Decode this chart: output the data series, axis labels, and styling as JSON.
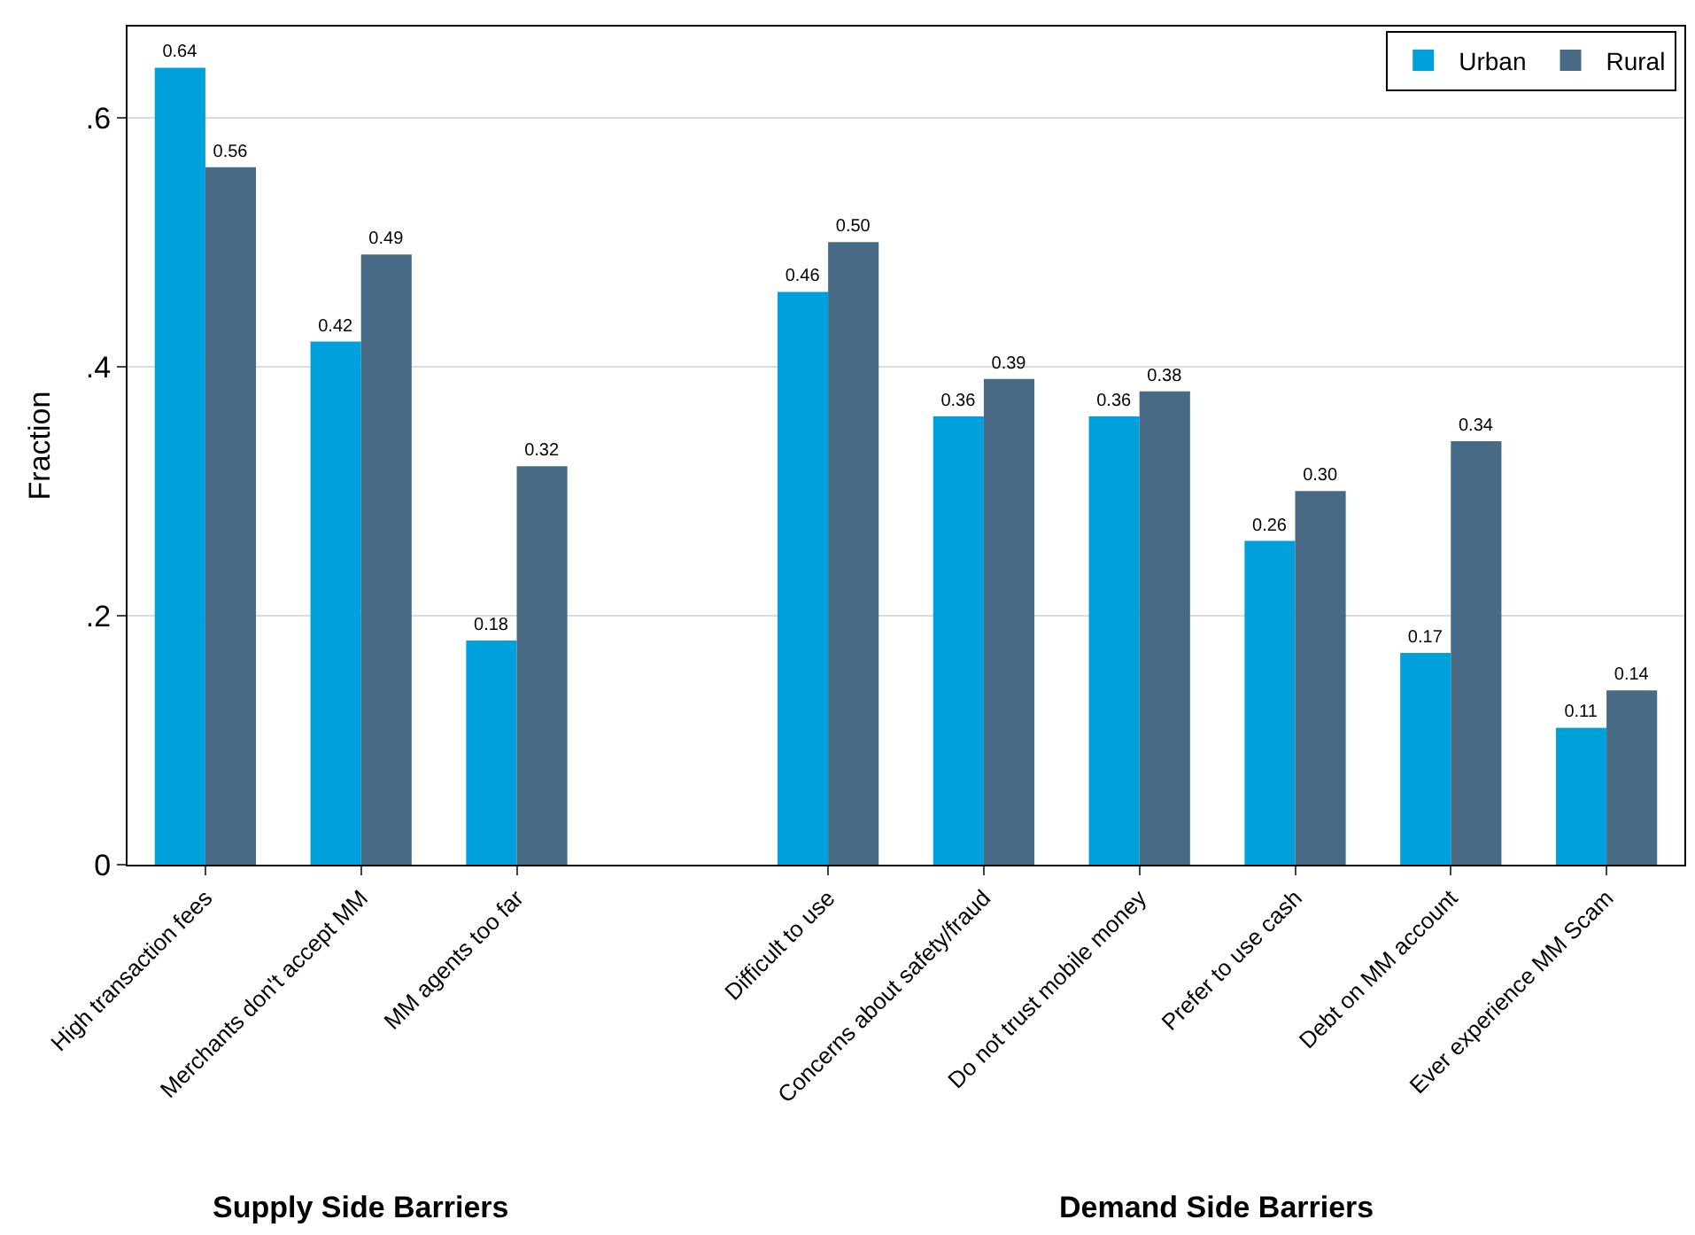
{
  "chart_data": {
    "type": "bar",
    "ylabel": "Fraction",
    "categories": [
      "High transaction fees",
      "Merchants don't accept MM",
      "MM agents too far",
      null,
      "Difficult to use",
      "Concerns about safety/fraud",
      "Do not trust mobile money",
      "Prefer to use cash",
      "Debt on MM account",
      "Ever experience MM Scam"
    ],
    "series": [
      {
        "name": "Urban",
        "color": "#00a0dc",
        "values": [
          0.64,
          0.42,
          0.18,
          null,
          0.46,
          0.36,
          0.36,
          0.26,
          0.17,
          0.11
        ],
        "value_labels": [
          "0.64",
          "0.42",
          "0.18",
          null,
          "0.46",
          "0.36",
          "0.36",
          "0.26",
          "0.17",
          "0.11"
        ]
      },
      {
        "name": "Rural",
        "color": "#486a84",
        "values": [
          0.56,
          0.49,
          0.32,
          null,
          0.5,
          0.39,
          0.38,
          0.3,
          0.34,
          0.14
        ],
        "value_labels": [
          "0.56",
          "0.49",
          "0.32",
          null,
          "0.50",
          "0.39",
          "0.38",
          "0.30",
          "0.34",
          "0.14"
        ]
      }
    ],
    "ylim": [
      0,
      0.673
    ],
    "yticks": [
      {
        "value": 0,
        "label": "0"
      },
      {
        "value": 0.2,
        "label": ".2"
      },
      {
        "value": 0.4,
        "label": ".4"
      },
      {
        "value": 0.6,
        "label": ".6"
      }
    ],
    "grid": "y",
    "legend": "top right",
    "annotations": [
      "Supply Side Barriers",
      "Demand Side Barriers"
    ]
  }
}
